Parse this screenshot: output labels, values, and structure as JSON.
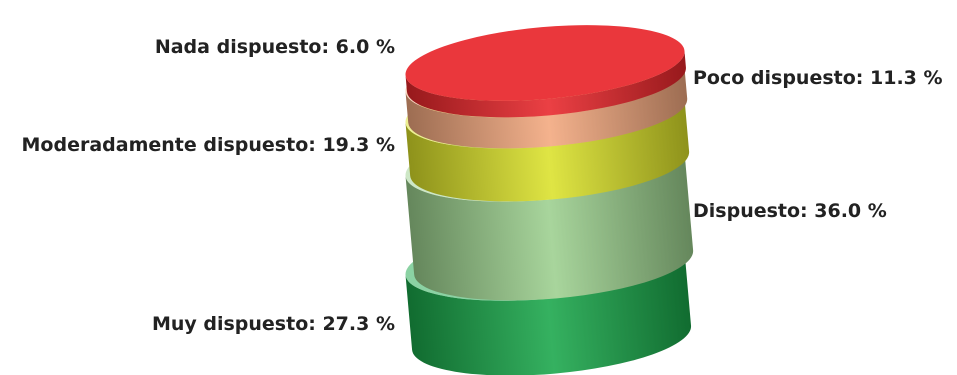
{
  "chart_data": {
    "type": "stacked-cylinder",
    "series": [
      {
        "name": "Muy dispuesto",
        "value": 27.3,
        "color": "#1aa64a"
      },
      {
        "name": "Dispuesto",
        "value": 36.0,
        "color": "#9ccf8e"
      },
      {
        "name": "Moderadamente dispuesto",
        "value": 19.3,
        "color": "#dbe12a"
      },
      {
        "name": "Poco dispuesto",
        "value": 11.3,
        "color": "#f2a77e"
      },
      {
        "name": "Nada dispuesto",
        "value": 6.0,
        "color": "#e8262b"
      }
    ],
    "labels": [
      {
        "text": "Muy dispuesto: 27.3 %",
        "side": "left"
      },
      {
        "text": "Dispuesto: 36.0 %",
        "side": "right"
      },
      {
        "text": "Moderadamente dispuesto: 19.3 %",
        "side": "left"
      },
      {
        "text": "Poco dispuesto: 11.3 %",
        "side": "right"
      },
      {
        "text": "Nada dispuesto: 6.0 %",
        "side": "left"
      }
    ],
    "unit": "%"
  }
}
